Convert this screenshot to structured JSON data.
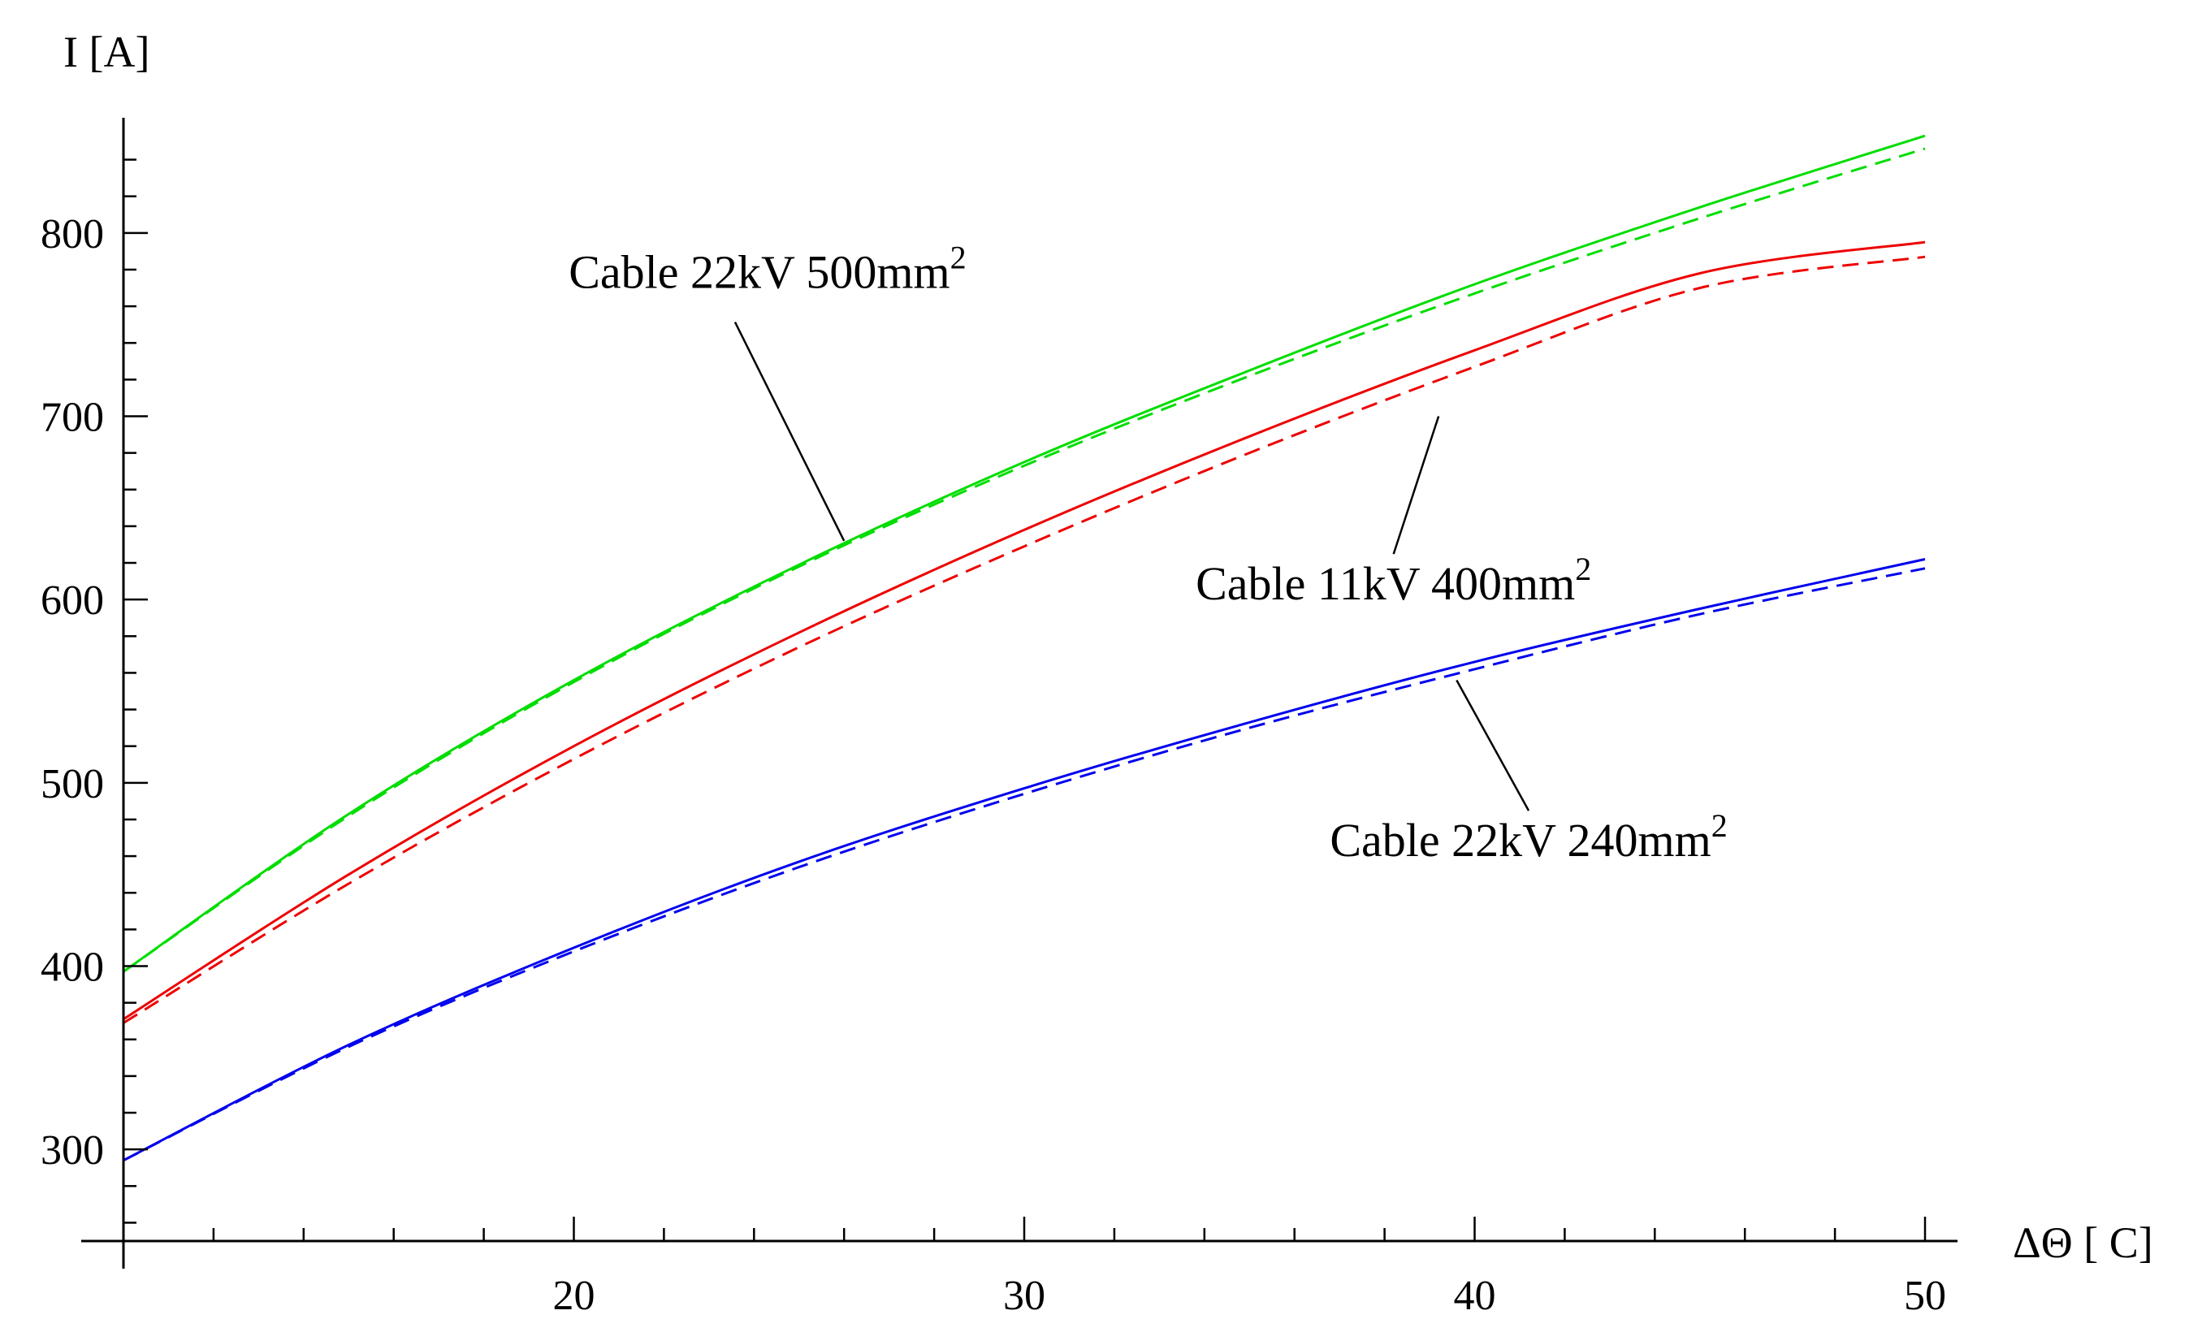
{
  "chart_data": {
    "type": "line",
    "xlabel": "ΔΘ [ C]",
    "ylabel": "I [A]",
    "xlim": [
      10,
      50
    ],
    "ylim": [
      250,
      850
    ],
    "x_ticks": [
      20,
      30,
      40,
      50
    ],
    "y_ticks": [
      300,
      400,
      500,
      600,
      700,
      800
    ],
    "grid": false,
    "colors": {
      "green": "#00dd00",
      "red": "#ee0000",
      "blue": "#0000ee"
    },
    "series": [
      {
        "color": "#00dd00",
        "style": "solid",
        "x": [
          10,
          15,
          20,
          25,
          30,
          35,
          40,
          45,
          50
        ],
        "y": [
          397,
          483,
          556,
          619,
          675,
          725,
          772,
          814,
          853
        ]
      },
      {
        "color": "#00dd00",
        "style": "dashed",
        "x": [
          10,
          15,
          20,
          25,
          30,
          35,
          40,
          45,
          50
        ],
        "y": [
          397,
          482,
          555,
          618,
          673,
          722,
          767,
          808,
          846
        ]
      },
      {
        "color": "#ee0000",
        "style": "solid",
        "x": [
          10,
          15,
          20,
          25,
          30,
          35,
          40,
          45,
          50
        ],
        "y": [
          371,
          450,
          520,
          582,
          638,
          689,
          736,
          778,
          795
        ]
      },
      {
        "color": "#ee0000",
        "style": "dashed",
        "x": [
          10,
          15,
          20,
          25,
          30,
          35,
          40,
          45,
          50
        ],
        "y": [
          369,
          445,
          513,
          574,
          629,
          680,
          727,
          770,
          787
        ]
      },
      {
        "color": "#0000ee",
        "style": "solid",
        "x": [
          10,
          15,
          20,
          25,
          30,
          35,
          40,
          45,
          50
        ],
        "y": [
          294,
          357,
          410,
          457,
          497,
          533,
          566,
          595,
          622
        ]
      },
      {
        "color": "#0000ee",
        "style": "dashed",
        "x": [
          10,
          15,
          20,
          25,
          30,
          35,
          40,
          45,
          50
        ],
        "y": [
          294,
          356,
          408,
          454,
          494,
          530,
          562,
          592,
          617
        ]
      }
    ],
    "annotations": [
      {
        "text": "Cable 22kV 500mm",
        "superscript": "2",
        "point": [
          26,
          632
        ],
        "label_pos": [
          24.3,
          770
        ]
      },
      {
        "text": "Cable 11kV 400mm",
        "superscript": "2",
        "point": [
          39.2,
          700
        ],
        "label_pos": [
          38.2,
          600
        ]
      },
      {
        "text": "Cable 22kV 240mm",
        "superscript": "2",
        "point": [
          39.6,
          556
        ],
        "label_pos": [
          41.2,
          460
        ]
      }
    ]
  }
}
